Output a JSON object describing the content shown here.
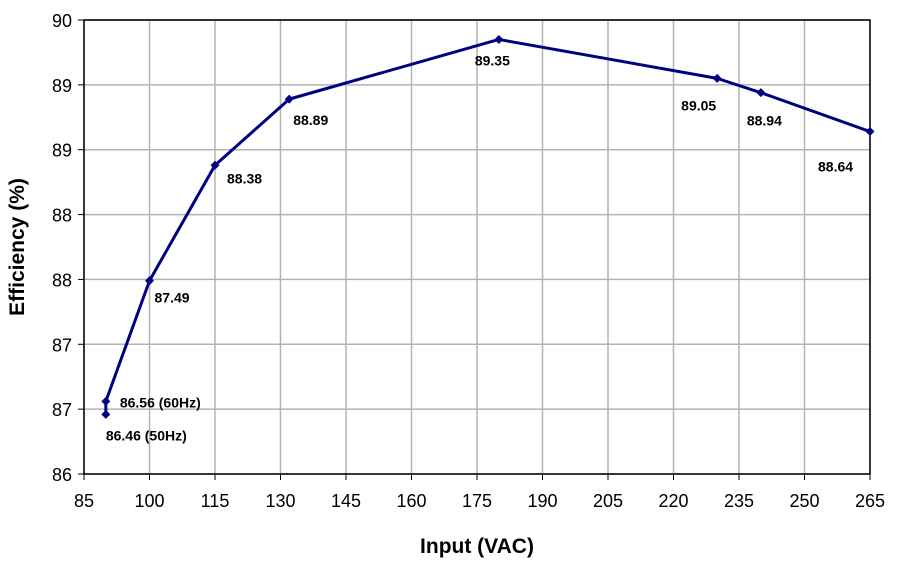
{
  "chart_data": {
    "type": "line",
    "title": "",
    "xlabel": "Input (VAC)",
    "ylabel": "Efficiency (%)",
    "xlim": [
      85,
      265
    ],
    "ylim": [
      86,
      89.5
    ],
    "x_ticks": [
      85,
      100,
      115,
      130,
      145,
      160,
      175,
      190,
      205,
      220,
      235,
      250,
      265
    ],
    "x_tick_labels": [
      "85",
      "100",
      "115",
      "130",
      "145",
      "160",
      "175",
      "190",
      "205",
      "220",
      "235",
      "250",
      "265"
    ],
    "y_ticks": [
      86,
      86.5,
      87,
      87.5,
      88,
      88.5,
      89,
      89.5
    ],
    "y_tick_labels": [
      "86",
      "87",
      "87",
      "88",
      "88",
      "89",
      "89",
      "90"
    ],
    "grid": true,
    "line_color": "#000080",
    "series": [
      {
        "points": [
          {
            "x": 90,
            "y": 86.46,
            "label": "86.46 (50Hz)"
          },
          {
            "x": 90,
            "y": 86.56,
            "label": "86.56 (60Hz)"
          },
          {
            "x": 100,
            "y": 87.49,
            "label": "87.49"
          },
          {
            "x": 115,
            "y": 88.38,
            "label": "88.38"
          },
          {
            "x": 132,
            "y": 88.89,
            "label": "88.89"
          },
          {
            "x": 180,
            "y": 89.35,
            "label": "89.35"
          },
          {
            "x": 230,
            "y": 89.05,
            "label": "89.05"
          },
          {
            "x": 240,
            "y": 88.94,
            "label": "88.94"
          },
          {
            "x": 265,
            "y": 88.64,
            "label": "88.64"
          }
        ]
      }
    ]
  }
}
